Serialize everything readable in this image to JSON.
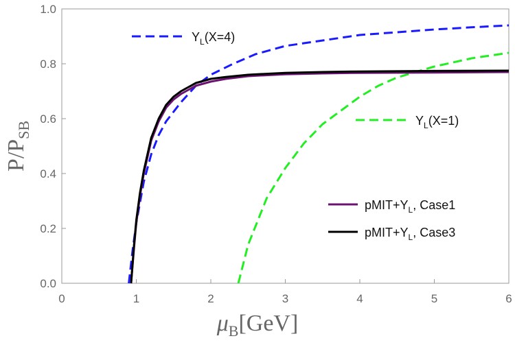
{
  "chart_data": {
    "type": "line",
    "title": "",
    "xlabel": {
      "main": "μ",
      "sub": "B",
      "rest": "[GeV]"
    },
    "ylabel": {
      "main": "P/P",
      "sub": "SB"
    },
    "xlim": [
      0,
      6
    ],
    "ylim": [
      0,
      1.0
    ],
    "x_ticks": [
      "0",
      "1",
      "2",
      "3",
      "4",
      "5",
      "6"
    ],
    "y_ticks": [
      "0.0",
      "0.2",
      "0.4",
      "0.6",
      "0.8",
      "1.0"
    ],
    "grid": false,
    "series": [
      {
        "key": "yl_x4",
        "label": {
          "pre": "Y",
          "sub": "L",
          "post": "(X=4)"
        },
        "color": "#1a1aff",
        "dash": "dashed",
        "x": [
          0.9,
          0.95,
          1.0,
          1.1,
          1.2,
          1.3,
          1.4,
          1.6,
          1.8,
          2.0,
          2.3,
          2.6,
          3.0,
          3.5,
          4.0,
          4.5,
          5.0,
          5.5,
          6.0
        ],
        "y": [
          0.0,
          0.12,
          0.22,
          0.37,
          0.47,
          0.54,
          0.59,
          0.66,
          0.72,
          0.76,
          0.8,
          0.835,
          0.865,
          0.885,
          0.905,
          0.915,
          0.925,
          0.933,
          0.94
        ]
      },
      {
        "key": "yl_x1",
        "label": {
          "pre": "Y",
          "sub": "L",
          "post": "(X=1)"
        },
        "color": "#22ee22",
        "dash": "dashed",
        "x": [
          2.37,
          2.5,
          2.75,
          3.0,
          3.25,
          3.5,
          3.75,
          4.0,
          4.25,
          4.5,
          5.0,
          5.5,
          6.0
        ],
        "y": [
          0.0,
          0.14,
          0.31,
          0.42,
          0.51,
          0.58,
          0.63,
          0.68,
          0.72,
          0.75,
          0.79,
          0.82,
          0.84
        ]
      },
      {
        "key": "case1",
        "label": {
          "pre": "pMIT+Y",
          "sub": "L",
          "post": ", Case1"
        },
        "color": "#6b1370",
        "dash": "solid",
        "x": [
          0.93,
          0.97,
          1.0,
          1.05,
          1.1,
          1.2,
          1.3,
          1.4,
          1.5,
          1.6,
          1.7,
          1.8,
          2.0,
          2.2,
          2.5,
          3.0,
          3.5,
          4.0,
          5.0,
          6.0
        ],
        "y": [
          0.0,
          0.13,
          0.22,
          0.32,
          0.4,
          0.52,
          0.59,
          0.64,
          0.67,
          0.69,
          0.705,
          0.72,
          0.735,
          0.745,
          0.755,
          0.762,
          0.765,
          0.767,
          0.768,
          0.77
        ]
      },
      {
        "key": "case3",
        "label": {
          "pre": "pMIT+Y",
          "sub": "L",
          "post": ", Case3"
        },
        "color": "#000000",
        "dash": "solid",
        "x": [
          0.93,
          0.97,
          1.0,
          1.05,
          1.1,
          1.2,
          1.3,
          1.4,
          1.5,
          1.6,
          1.7,
          1.8,
          2.0,
          2.2,
          2.5,
          3.0,
          3.5,
          4.0,
          5.0,
          6.0
        ],
        "y": [
          0.0,
          0.14,
          0.23,
          0.33,
          0.41,
          0.53,
          0.6,
          0.65,
          0.68,
          0.7,
          0.715,
          0.73,
          0.745,
          0.752,
          0.76,
          0.767,
          0.77,
          0.772,
          0.774,
          0.775
        ]
      }
    ]
  }
}
